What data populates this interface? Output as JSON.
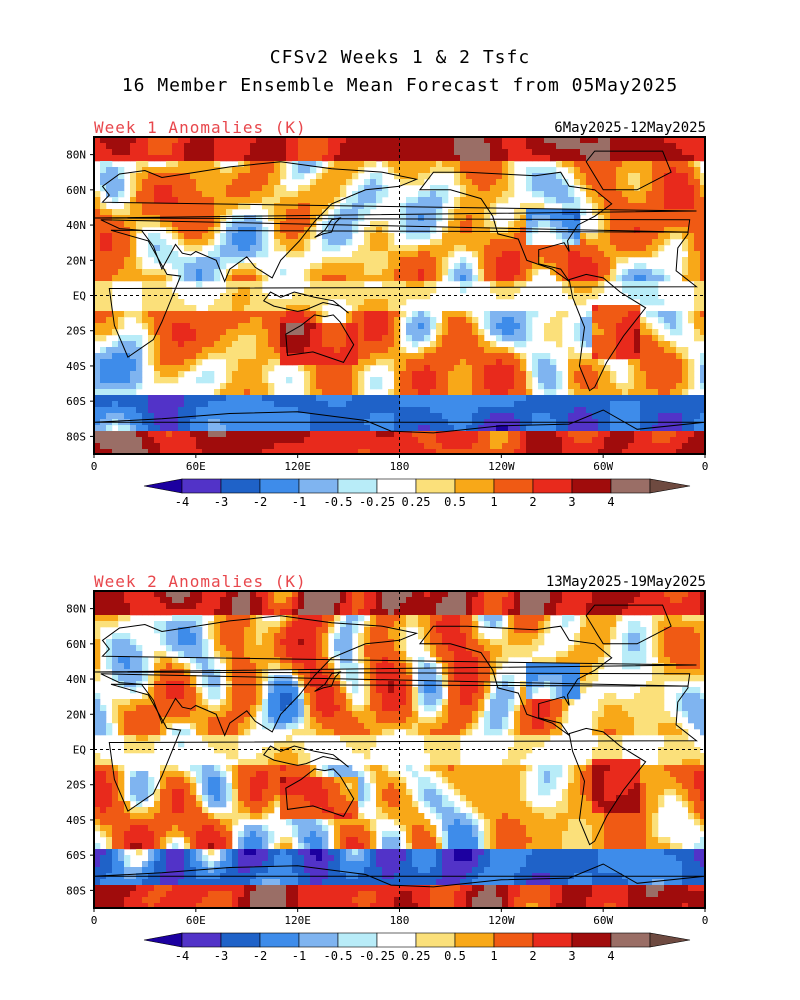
{
  "title_line1": "CFSv2 Weeks 1 & 2 Tsfc",
  "title_line2": "16 Member Ensemble Mean Forecast from 05May2025",
  "panels": [
    {
      "label": "Week 1 Anomalies (K)",
      "dates": "6May2025-12May2025",
      "seed": 11
    },
    {
      "label": "Week 2 Anomalies (K)",
      "dates": "13May2025-19May2025",
      "seed": 47
    }
  ],
  "lat_labels": [
    "80N",
    "60N",
    "40N",
    "20N",
    "EQ",
    "20S",
    "40S",
    "60S",
    "80S"
  ],
  "lon_labels": [
    "0",
    "60E",
    "120E",
    "180",
    "120W",
    "60W",
    "0"
  ],
  "colorbar": {
    "tick_labels": [
      "-4",
      "-3",
      "-2",
      "-1",
      "-0.5",
      "-0.25",
      "0.25",
      "0.5",
      "1",
      "2",
      "3",
      "4"
    ],
    "colors": [
      "#1c00a0",
      "#5233c8",
      "#1f62c8",
      "#3e8cea",
      "#7fb4f0",
      "#b8ecf8",
      "#ffffff",
      "#fbe07a",
      "#f8a818",
      "#f05a14",
      "#e82a1c",
      "#a00c0c",
      "#9a6e66",
      "#6e4a40"
    ]
  },
  "features": {
    "equator_line": "dashed",
    "dateline": "dashed",
    "map_range": {
      "lon": [
        0,
        360
      ],
      "lat": [
        -90,
        90
      ]
    }
  }
}
